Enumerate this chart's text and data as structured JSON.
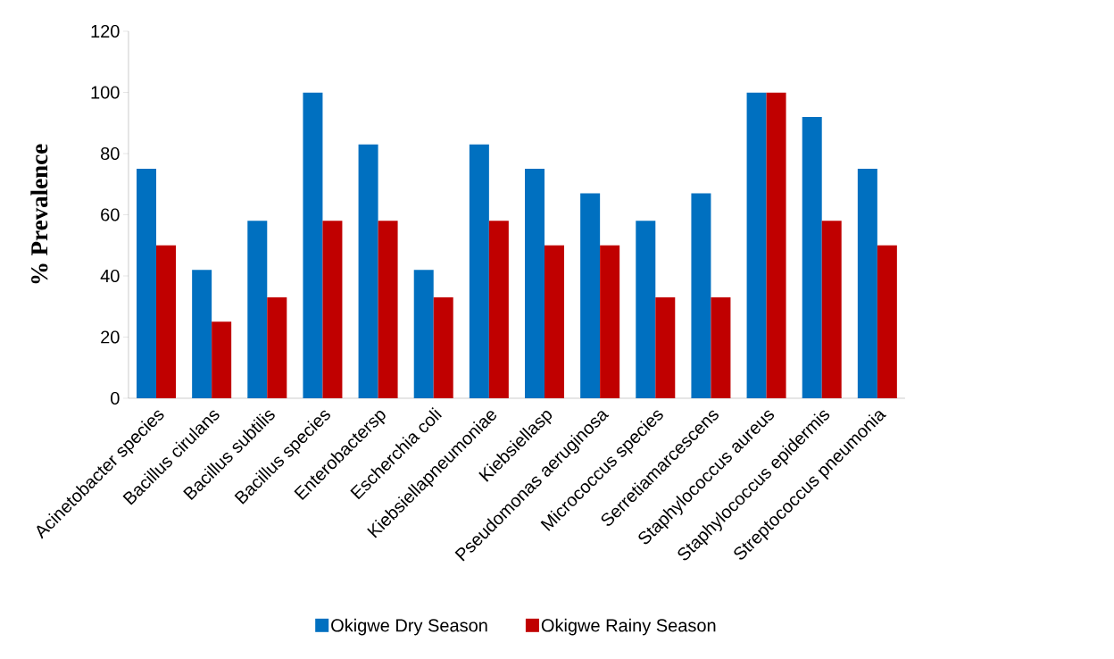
{
  "chart_data": {
    "type": "bar",
    "ylabel": "% Prevalence",
    "categories": [
      "Acinetobacter species",
      "Bacillus cirulans",
      "Bacillus subtilis",
      "Bacillus species",
      "Enterobactersp",
      "Escherchia coli",
      "Kiebsiellapneumoniae",
      "Kiebsiellasp",
      "Pseudomonas aeruginosa",
      "Micrococcus species",
      "Serretiamarcescens",
      "Staphylococcus aureus",
      "Staphylococcus epidermis",
      "Streptococcus pneumonia"
    ],
    "series": [
      {
        "name": "Okigwe Dry Season",
        "color": "#0070c0",
        "values": [
          75,
          42,
          58,
          100,
          83,
          42,
          83,
          75,
          67,
          58,
          67,
          100,
          92,
          75
        ]
      },
      {
        "name": "Okigwe Rainy Season",
        "color": "#c00000",
        "values": [
          50,
          25,
          33,
          58,
          58,
          33,
          58,
          50,
          50,
          33,
          33,
          100,
          58,
          50
        ]
      }
    ],
    "ylim": [
      0,
      120
    ],
    "yticks": [
      0,
      20,
      40,
      60,
      80,
      100,
      120
    ],
    "legend": "bottom"
  }
}
